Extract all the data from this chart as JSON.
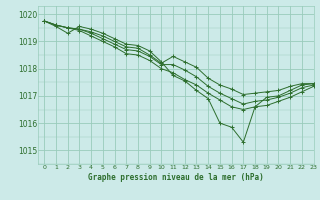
{
  "title": "Graphe pression niveau de la mer (hPa)",
  "xlim": [
    -0.5,
    23
  ],
  "ylim": [
    1014.5,
    1020.3
  ],
  "yticks": [
    1015,
    1016,
    1017,
    1018,
    1019,
    1020
  ],
  "xticks": [
    0,
    1,
    2,
    3,
    4,
    5,
    6,
    7,
    8,
    9,
    10,
    11,
    12,
    13,
    14,
    15,
    16,
    17,
    18,
    19,
    20,
    21,
    22,
    23
  ],
  "bg_color": "#cceae8",
  "grid_color": "#99ccbb",
  "line_color": "#2d6e2d",
  "lines": [
    [
      1019.75,
      1019.55,
      1019.3,
      1019.55,
      1019.45,
      1019.3,
      1019.1,
      1018.9,
      1018.85,
      1018.65,
      1018.25,
      1017.75,
      1017.55,
      1017.2,
      1016.9,
      1016.0,
      1015.85,
      1015.3,
      1016.6,
      1016.95,
      1017.0,
      1017.2,
      1017.4,
      1017.45
    ],
    [
      1019.75,
      1019.6,
      1019.5,
      1019.45,
      1019.35,
      1019.2,
      1019.0,
      1018.8,
      1018.75,
      1018.5,
      1018.2,
      1018.45,
      1018.25,
      1018.05,
      1017.65,
      1017.4,
      1017.25,
      1017.05,
      1017.1,
      1017.15,
      1017.2,
      1017.35,
      1017.45,
      1017.45
    ],
    [
      1019.75,
      1019.6,
      1019.5,
      1019.45,
      1019.3,
      1019.1,
      1018.9,
      1018.7,
      1018.65,
      1018.45,
      1018.15,
      1018.15,
      1017.95,
      1017.7,
      1017.35,
      1017.1,
      1016.9,
      1016.7,
      1016.8,
      1016.85,
      1016.95,
      1017.1,
      1017.3,
      1017.4
    ],
    [
      1019.75,
      1019.6,
      1019.5,
      1019.4,
      1019.2,
      1019.0,
      1018.8,
      1018.55,
      1018.5,
      1018.3,
      1018.0,
      1017.85,
      1017.6,
      1017.4,
      1017.1,
      1016.85,
      1016.6,
      1016.5,
      1016.6,
      1016.65,
      1016.8,
      1016.95,
      1017.15,
      1017.35
    ]
  ],
  "marker": "+"
}
